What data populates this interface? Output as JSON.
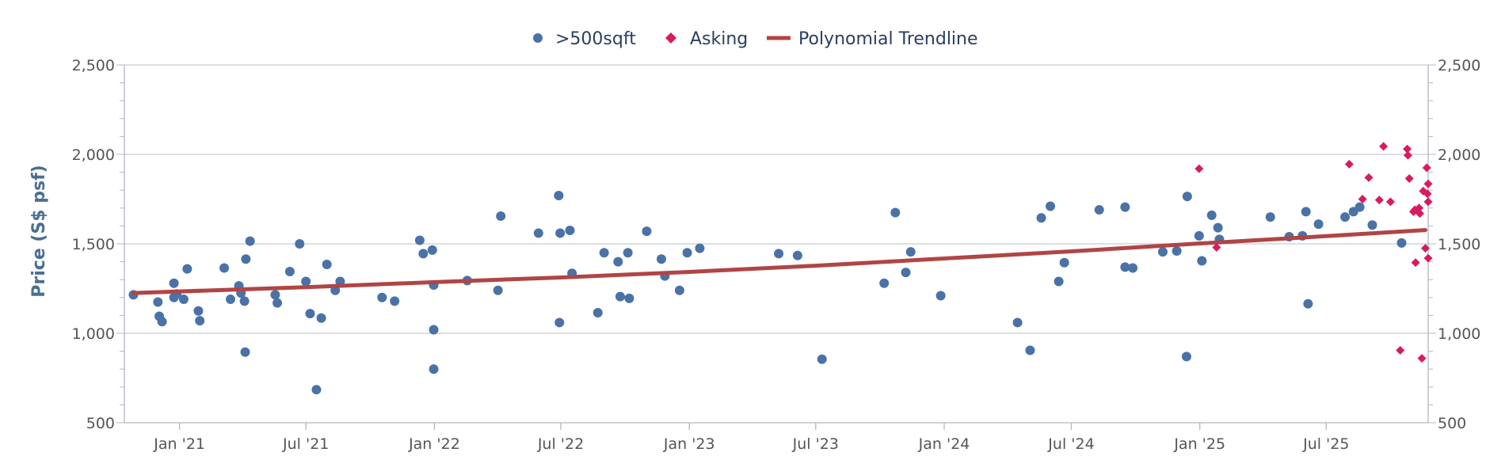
{
  "chart_data": {
    "type": "scatter",
    "title": "",
    "xlabel": "",
    "ylabel": "Price (S$ psf)",
    "ylim": [
      500,
      2500
    ],
    "yticks": [
      500,
      1000,
      1500,
      2000,
      2500
    ],
    "ytick_labels": [
      "500",
      "1,000",
      "1,500",
      "2,000",
      "2,500"
    ],
    "xlim": [
      "2020-10-14",
      "2025-11-24"
    ],
    "xticks": [
      "2021-01-01",
      "2021-07-01",
      "2022-01-01",
      "2022-07-01",
      "2023-01-01",
      "2023-07-01",
      "2024-01-01",
      "2024-07-01",
      "2025-01-01",
      "2025-07-01"
    ],
    "xtick_labels": [
      "Jan '21",
      "Jul '21",
      "Jan '22",
      "Jul '22",
      "Jan '23",
      "Jul '23",
      "Jan '24",
      "Jul '24",
      "Jan '25",
      "Jul '25"
    ],
    "grid": "horizontal major lines",
    "legend_position": "top-center",
    "colors": {
      "units": "#4a72a6",
      "asking": "#d81b60",
      "trend": "#b04545"
    },
    "series": [
      {
        "name": ">500sqft",
        "marker": "circle",
        "points": [
          [
            "2020-10-27",
            1215
          ],
          [
            "2020-12-01",
            1175
          ],
          [
            "2020-12-03",
            1095
          ],
          [
            "2020-12-07",
            1065
          ],
          [
            "2020-12-24",
            1200
          ],
          [
            "2020-12-24",
            1280
          ],
          [
            "2020-12-28",
            1220
          ],
          [
            "2021-01-07",
            1190
          ],
          [
            "2021-01-12",
            1360
          ],
          [
            "2021-01-28",
            1125
          ],
          [
            "2021-01-30",
            1070
          ],
          [
            "2021-03-06",
            1365
          ],
          [
            "2021-03-15",
            1190
          ],
          [
            "2021-03-27",
            1265
          ],
          [
            "2021-03-30",
            1225
          ],
          [
            "2021-04-06",
            1415
          ],
          [
            "2021-04-04",
            1180
          ],
          [
            "2021-04-05",
            895
          ],
          [
            "2021-04-12",
            1515
          ],
          [
            "2021-05-18",
            1215
          ],
          [
            "2021-05-21",
            1170
          ],
          [
            "2021-06-08",
            1345
          ],
          [
            "2021-06-22",
            1500
          ],
          [
            "2021-07-01",
            1290
          ],
          [
            "2021-07-07",
            1110
          ],
          [
            "2021-07-23",
            1085
          ],
          [
            "2021-07-16",
            685
          ],
          [
            "2021-07-31",
            1385
          ],
          [
            "2021-08-12",
            1240
          ],
          [
            "2021-08-19",
            1290
          ],
          [
            "2021-10-18",
            1200
          ],
          [
            "2021-11-05",
            1180
          ],
          [
            "2021-12-11",
            1520
          ],
          [
            "2021-12-16",
            1445
          ],
          [
            "2021-12-29",
            1465
          ],
          [
            "2021-12-31",
            1270
          ],
          [
            "2021-12-31",
            1020
          ],
          [
            "2021-12-31",
            800
          ],
          [
            "2022-02-17",
            1295
          ],
          [
            "2022-04-02",
            1240
          ],
          [
            "2022-04-06",
            1655
          ],
          [
            "2022-05-30",
            1560
          ],
          [
            "2022-06-28",
            1770
          ],
          [
            "2022-06-30",
            1560
          ],
          [
            "2022-06-29",
            1060
          ],
          [
            "2022-07-14",
            1575
          ],
          [
            "2022-07-17",
            1335
          ],
          [
            "2022-08-23",
            1115
          ],
          [
            "2022-09-01",
            1450
          ],
          [
            "2022-09-21",
            1400
          ],
          [
            "2022-09-24",
            1205
          ],
          [
            "2022-10-05",
            1450
          ],
          [
            "2022-10-07",
            1195
          ],
          [
            "2022-11-01",
            1570
          ],
          [
            "2022-11-22",
            1415
          ],
          [
            "2022-11-27",
            1320
          ],
          [
            "2022-12-18",
            1240
          ],
          [
            "2022-12-29",
            1450
          ],
          [
            "2023-01-16",
            1475
          ],
          [
            "2023-05-09",
            1445
          ],
          [
            "2023-06-05",
            1435
          ],
          [
            "2023-07-10",
            855
          ],
          [
            "2023-10-07",
            1280
          ],
          [
            "2023-10-23",
            1675
          ],
          [
            "2023-11-07",
            1340
          ],
          [
            "2023-11-14",
            1455
          ],
          [
            "2023-12-27",
            1210
          ],
          [
            "2024-04-15",
            1060
          ],
          [
            "2024-05-03",
            905
          ],
          [
            "2024-05-19",
            1645
          ],
          [
            "2024-06-01",
            1710
          ],
          [
            "2024-06-13",
            1290
          ],
          [
            "2024-06-21",
            1395
          ],
          [
            "2024-08-10",
            1690
          ],
          [
            "2024-09-16",
            1705
          ],
          [
            "2024-09-16",
            1370
          ],
          [
            "2024-09-27",
            1365
          ],
          [
            "2024-11-09",
            1455
          ],
          [
            "2024-11-29",
            1460
          ],
          [
            "2024-12-13",
            870
          ],
          [
            "2024-12-14",
            1765
          ],
          [
            "2024-12-31",
            1545
          ],
          [
            "2025-01-04",
            1405
          ],
          [
            "2025-01-18",
            1660
          ],
          [
            "2025-01-27",
            1590
          ],
          [
            "2025-01-29",
            1525
          ],
          [
            "2025-04-12",
            1650
          ],
          [
            "2025-05-09",
            1540
          ],
          [
            "2025-05-28",
            1545
          ],
          [
            "2025-06-02",
            1680
          ],
          [
            "2025-06-05",
            1165
          ],
          [
            "2025-06-20",
            1610
          ],
          [
            "2025-07-28",
            1650
          ],
          [
            "2025-08-09",
            1680
          ],
          [
            "2025-08-18",
            1705
          ],
          [
            "2025-09-05",
            1605
          ],
          [
            "2025-10-17",
            1505
          ]
        ]
      },
      {
        "name": "Asking",
        "marker": "diamond",
        "points": [
          [
            "2024-12-31",
            1920
          ],
          [
            "2025-01-25",
            1480
          ],
          [
            "2025-08-03",
            1945
          ],
          [
            "2025-08-22",
            1750
          ],
          [
            "2025-08-31",
            1870
          ],
          [
            "2025-09-15",
            1745
          ],
          [
            "2025-09-21",
            2045
          ],
          [
            "2025-10-01",
            1735
          ],
          [
            "2025-10-15",
            905
          ],
          [
            "2025-10-25",
            2030
          ],
          [
            "2025-10-26",
            1995
          ],
          [
            "2025-10-28",
            1865
          ],
          [
            "2025-11-03",
            1680
          ],
          [
            "2025-11-05",
            1690
          ],
          [
            "2025-11-06",
            1395
          ],
          [
            "2025-11-11",
            1700
          ],
          [
            "2025-11-12",
            1670
          ],
          [
            "2025-11-15",
            860
          ],
          [
            "2025-11-17",
            1795
          ],
          [
            "2025-11-20",
            1475
          ],
          [
            "2025-11-22",
            1925
          ],
          [
            "2025-11-23",
            1780
          ],
          [
            "2025-11-24",
            1835
          ],
          [
            "2025-11-24",
            1735
          ],
          [
            "2025-11-24",
            1420
          ]
        ]
      },
      {
        "name": "Polynomial Trendline",
        "marker": "line",
        "points": [
          [
            "2020-10-27",
            1225
          ],
          [
            "2021-07-01",
            1258
          ],
          [
            "2022-01-01",
            1286
          ],
          [
            "2022-07-01",
            1312
          ],
          [
            "2023-01-01",
            1343
          ],
          [
            "2023-07-01",
            1378
          ],
          [
            "2024-01-01",
            1418
          ],
          [
            "2024-07-01",
            1458
          ],
          [
            "2025-01-01",
            1502
          ],
          [
            "2025-07-01",
            1543
          ],
          [
            "2025-11-20",
            1577
          ]
        ]
      }
    ]
  }
}
